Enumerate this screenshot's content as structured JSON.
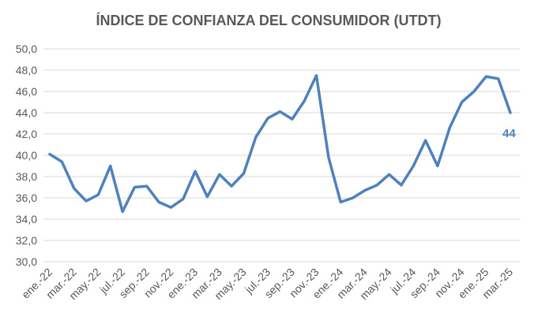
{
  "chart_data": {
    "type": "line",
    "title": "ÍNDICE DE CONFIANZA DEL CONSUMIDOR (UTDT)",
    "xlabel": "",
    "ylabel": "",
    "ylim": [
      30,
      50
    ],
    "y_ticks": [
      "30,0",
      "32,0",
      "34,0",
      "36,0",
      "38,0",
      "40,0",
      "42,0",
      "44,0",
      "46,0",
      "48,0",
      "50,0"
    ],
    "y_tick_values": [
      30,
      32,
      34,
      36,
      38,
      40,
      42,
      44,
      46,
      48,
      50
    ],
    "grid": true,
    "x_tick_labels": [
      "ene.-22",
      "mar.-22",
      "may.-22",
      "jul.-22",
      "sep.-22",
      "nov.-22",
      "ene.-23",
      "mar.-23",
      "may.-23",
      "jul.-23",
      "sep.-23",
      "nov.-23",
      "ene.-24",
      "mar.-24",
      "may.-24",
      "jul.-24",
      "sep.-24",
      "nov.-24",
      "ene.-25",
      "mar.-25"
    ],
    "categories": [
      "ene.-22",
      "feb.-22",
      "mar.-22",
      "abr.-22",
      "may.-22",
      "jun.-22",
      "jul.-22",
      "ago.-22",
      "sep.-22",
      "oct.-22",
      "nov.-22",
      "dic.-22",
      "ene.-23",
      "feb.-23",
      "mar.-23",
      "abr.-23",
      "may.-23",
      "jun.-23",
      "jul.-23",
      "ago.-23",
      "sep.-23",
      "oct.-23",
      "nov.-23",
      "dic.-23",
      "ene.-24",
      "feb.-24",
      "mar.-24",
      "abr.-24",
      "may.-24",
      "jun.-24",
      "jul.-24",
      "ago.-24",
      "sep.-24",
      "oct.-24",
      "nov.-24",
      "dic.-24",
      "ene.-25",
      "feb.-25",
      "mar.-25"
    ],
    "series": [
      {
        "name": "Índice de Confianza del Consumidor",
        "color": "#4f81bd",
        "values": [
          40.1,
          39.4,
          36.9,
          35.7,
          36.3,
          39.0,
          34.7,
          37.0,
          37.1,
          35.6,
          35.1,
          35.9,
          38.5,
          36.1,
          38.2,
          37.1,
          38.3,
          41.7,
          43.5,
          44.1,
          43.4,
          45.1,
          47.5,
          39.8,
          35.6,
          36.0,
          36.7,
          37.2,
          38.2,
          37.2,
          39.0,
          41.4,
          39.0,
          42.6,
          45.0,
          46.0,
          47.4,
          47.2,
          44.0
        ]
      }
    ],
    "annotations": [
      {
        "text": "44",
        "index": 38,
        "color": "#4f81bd"
      }
    ]
  }
}
